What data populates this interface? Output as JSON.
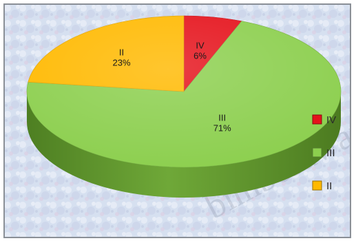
{
  "chart_data": {
    "type": "pie",
    "style": "3d",
    "categories": [
      "IV",
      "III",
      "II"
    ],
    "values": [
      6,
      71,
      23
    ],
    "value_labels": [
      "6%",
      "71%",
      "23%"
    ],
    "colors": {
      "IV": "#e5121b",
      "III": "#8ccf4e",
      "II": "#ffb900"
    },
    "legend": {
      "position": "right",
      "entries": [
        "IV",
        "III",
        "II"
      ]
    },
    "title": "",
    "watermark": "bimbesawara"
  }
}
